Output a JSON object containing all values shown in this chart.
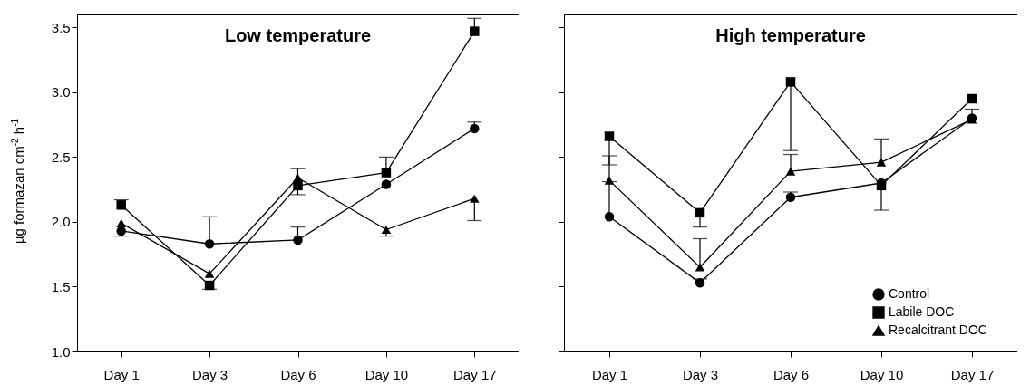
{
  "chart_data": [
    {
      "type": "line",
      "title": "Low temperature",
      "ylabel": "µg formazan cm$^{-2}$ h$^{-1}$",
      "categories": [
        "Day 1",
        "Day 3",
        "Day 6",
        "Day 10",
        "Day 17"
      ],
      "ylim": [
        1.0,
        3.6
      ],
      "yticks": [
        {
          "value": 1,
          "label": "1.0"
        },
        {
          "value": 1.5,
          "label": "1.5"
        },
        {
          "value": 2,
          "label": "2.0"
        },
        {
          "value": 2.5,
          "label": "2.5"
        },
        {
          "value": 3,
          "label": "3.0"
        },
        {
          "value": 3.5,
          "label": "3.5"
        }
      ],
      "grid": false,
      "series": [
        {
          "color": "#000000",
          "marker": "circle",
          "values": [
            1.93,
            1.83,
            1.86,
            2.29,
            2.72
          ],
          "errors": [
            [
              1.89,
              1.93
            ],
            [
              1.83,
              2.04
            ],
            [
              1.86,
              1.96
            ],
            null,
            [
              2.72,
              2.77
            ]
          ]
        },
        {
          "color": "#000000",
          "marker": "square",
          "values": [
            2.13,
            1.51,
            2.28,
            2.38,
            3.47
          ],
          "errors": [
            [
              2.13,
              2.17
            ],
            [
              1.48,
              1.51
            ],
            [
              2.21,
              2.28
            ],
            [
              2.38,
              2.5
            ],
            [
              3.47,
              3.57
            ]
          ]
        },
        {
          "color": "#000000",
          "marker": "triangle",
          "values": [
            1.99,
            1.6,
            2.34,
            1.94,
            2.18
          ],
          "errors": [
            null,
            null,
            [
              2.34,
              2.41
            ],
            [
              1.89,
              1.94
            ],
            [
              2.01,
              2.18
            ]
          ]
        }
      ]
    },
    {
      "type": "line",
      "title": "High temperature",
      "categories": [
        "Day 1",
        "Day 3",
        "Day 6",
        "Day 10",
        "Day 17"
      ],
      "ylim": [
        1.0,
        3.6
      ],
      "tick_labels": "x",
      "grid": false,
      "legend": "bottom right",
      "yticks": [
        1,
        1.5,
        2,
        2.5,
        3,
        3.5
      ],
      "series": [
        {
          "name": "Control",
          "color": "#000000",
          "marker": "circle",
          "values": [
            2.04,
            1.53,
            2.19,
            2.3,
            2.8
          ],
          "errors": [
            [
              2.04,
              2.31
            ],
            [
              1.53,
              1.56
            ],
            [
              2.19,
              2.23
            ],
            null,
            [
              2.8,
              2.87
            ]
          ]
        },
        {
          "name": "Labile DOC",
          "color": "#000000",
          "marker": "square",
          "values": [
            2.66,
            2.07,
            3.08,
            2.28,
            2.95
          ],
          "errors": [
            [
              2.44,
              2.66
            ],
            [
              1.96,
              2.07
            ],
            [
              2.55,
              3.08
            ],
            [
              2.09,
              2.28
            ],
            null
          ]
        },
        {
          "name": "Recalcitrant DOC",
          "color": "#000000",
          "marker": "triangle",
          "values": [
            2.32,
            1.65,
            2.39,
            2.46,
            2.79
          ],
          "errors": [
            [
              2.32,
              2.51
            ],
            [
              1.65,
              1.87
            ],
            [
              2.39,
              2.52
            ],
            [
              2.46,
              2.64
            ],
            null
          ]
        }
      ]
    }
  ]
}
